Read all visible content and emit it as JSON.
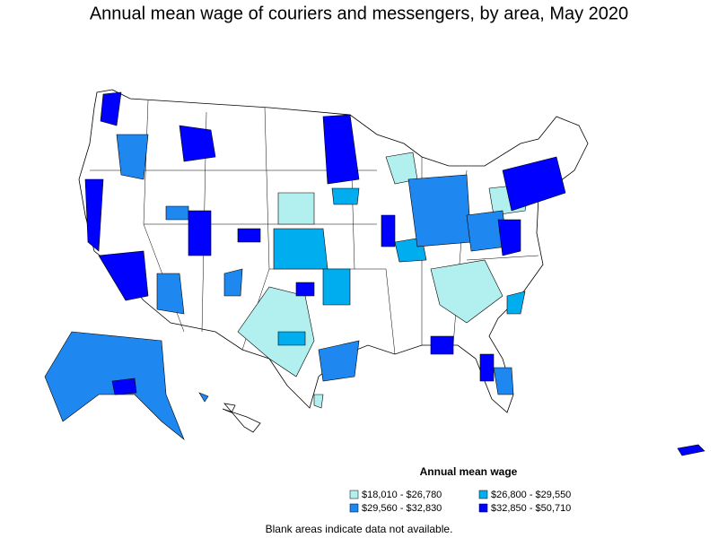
{
  "title": "Annual mean wage of couriers and messengers, by area, May 2020",
  "legend": {
    "title": "Annual mean wage",
    "items": [
      {
        "label": "$18,010 - $26,780",
        "color": "#b2efef"
      },
      {
        "label": "$26,800 - $29,550",
        "color": "#00aeef"
      },
      {
        "label": "$29,560 - $32,830",
        "color": "#1e88f0"
      },
      {
        "label": "$32,850 - $50,710",
        "color": "#0000ff"
      }
    ]
  },
  "note": "Blank areas indicate data not available."
}
